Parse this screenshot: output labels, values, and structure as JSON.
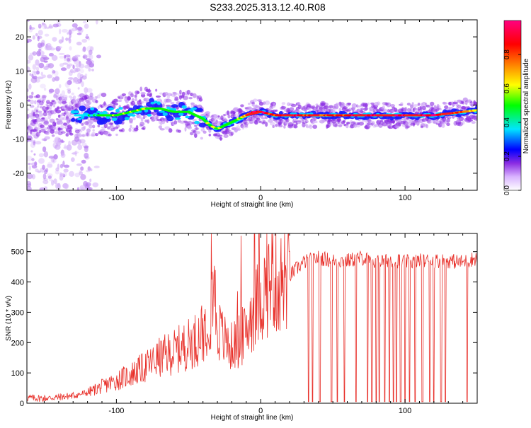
{
  "title": "S233.2025.313.12.40.R08",
  "colors": {
    "snr_line": "#e8302a",
    "axis": "#000000"
  },
  "chart_data": [
    {
      "type": "heatmap",
      "xlabel": "Height of straight line (km)",
      "ylabel": "Frequency (Hz)",
      "xlim": [
        -162,
        150
      ],
      "ylim": [
        -25,
        25
      ],
      "x_ticks": [
        -100,
        0,
        100
      ],
      "x_tick_labels": [
        "-100",
        "0",
        "100"
      ],
      "y_ticks": [
        -20,
        -10,
        0,
        10,
        20
      ],
      "y_tick_labels": [
        "-20",
        "-10",
        "0",
        "10",
        "20"
      ],
      "colorbar": {
        "label": "Normalized spectral amplitude",
        "range": [
          0,
          1
        ],
        "ticks": [
          0.0,
          0.2,
          0.4,
          0.6,
          0.8
        ],
        "tick_labels": [
          "0.0",
          "0.2",
          "0.4",
          "0.6",
          "0.8"
        ],
        "colormap": [
          "#ffffff",
          "#d9b3ff",
          "#8a2be2",
          "#0000ff",
          "#00e5ff",
          "#00ff00",
          "#ffff00",
          "#ff8000",
          "#ff0000",
          "#ff0080"
        ]
      },
      "ridge": {
        "x": [
          -162,
          -140,
          -120,
          -110,
          -100,
          -90,
          -80,
          -70,
          -60,
          -50,
          -45,
          -40,
          -35,
          -30,
          -25,
          -20,
          -15,
          -10,
          -5,
          0,
          10,
          20,
          40,
          60,
          80,
          100,
          120,
          140,
          150
        ],
        "freq": [
          -3,
          -3,
          -3,
          -3,
          -3,
          -2,
          -1,
          -1,
          -2,
          -2,
          -3,
          -4,
          -6,
          -7,
          -6,
          -5,
          -4,
          -3,
          -2,
          -2,
          -3,
          -3,
          -3,
          -3,
          -3,
          -3,
          -3,
          -2,
          -1.5
        ],
        "amplitude": [
          0.1,
          0.2,
          0.35,
          0.45,
          0.5,
          0.55,
          0.5,
          0.45,
          0.5,
          0.45,
          0.4,
          0.45,
          0.5,
          0.5,
          0.5,
          0.5,
          0.5,
          0.7,
          0.9,
          0.9,
          0.85,
          0.9,
          0.8,
          0.85,
          0.85,
          0.9,
          0.85,
          0.8,
          0.6
        ]
      }
    },
    {
      "type": "line",
      "xlabel": "Height of straight line (km)",
      "ylabel": "SNR (10 * v/v)",
      "xlim": [
        -162,
        150
      ],
      "ylim": [
        0,
        560
      ],
      "x_ticks": [
        -100,
        0,
        100
      ],
      "x_tick_labels": [
        "-100",
        "0",
        "100"
      ],
      "y_ticks": [
        0,
        100,
        200,
        300,
        400,
        500
      ],
      "y_tick_labels": [
        "0",
        "100",
        "200",
        "300",
        "400",
        "500"
      ],
      "series": [
        {
          "name": "SNR",
          "x": [
            -162,
            -150,
            -140,
            -130,
            -120,
            -110,
            -100,
            -90,
            -80,
            -75,
            -70,
            -60,
            -50,
            -45,
            -40,
            -35,
            -33,
            -30,
            -25,
            -20,
            -15,
            -10,
            -8,
            -5,
            -2,
            0,
            3,
            5,
            8,
            10,
            15,
            20,
            25,
            30,
            40,
            50,
            60,
            70,
            80,
            90,
            100,
            110,
            120,
            130,
            140,
            150
          ],
          "y": [
            18,
            16,
            20,
            25,
            35,
            55,
            75,
            95,
            120,
            135,
            150,
            170,
            195,
            210,
            240,
            300,
            420,
            250,
            205,
            185,
            210,
            230,
            280,
            300,
            330,
            350,
            370,
            390,
            430,
            400,
            400,
            420,
            445,
            465,
            480,
            470,
            470,
            480,
            465,
            475,
            465,
            470,
            470,
            470,
            465,
            480
          ],
          "dropouts_x": [
            33,
            36,
            41,
            49,
            53,
            58,
            66,
            74,
            77,
            80,
            82,
            86,
            89,
            92,
            94,
            97,
            100,
            103,
            107,
            112,
            117,
            120,
            125,
            128,
            143
          ]
        }
      ]
    }
  ]
}
